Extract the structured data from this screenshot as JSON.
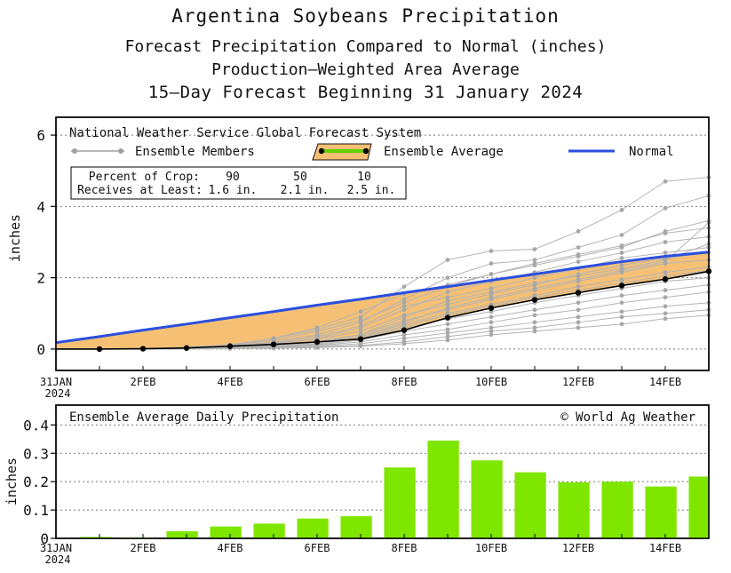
{
  "titles": {
    "line1": "Argentina Soybeans Precipitation",
    "line2": "Forecast Precipitation Compared to Normal (inches)",
    "line3": "Production—Weighted Area Average",
    "line4": "15—Day Forecast Beginning 31 January 2024"
  },
  "chart_data": [
    {
      "type": "line",
      "panel_label": "National Weather Service Global Forecast System",
      "ylabel": "inches",
      "ylim": [
        -0.6,
        6.5
      ],
      "yticks": [
        0,
        2,
        4,
        6
      ],
      "x_days": [
        0,
        1,
        2,
        3,
        4,
        5,
        6,
        7,
        8,
        9,
        10,
        11,
        12,
        13,
        14,
        15
      ],
      "x_tick_labels": [
        {
          "day": 0,
          "label": "31JAN",
          "sub": "2024"
        },
        {
          "day": 2,
          "label": "2FEB"
        },
        {
          "day": 4,
          "label": "4FEB"
        },
        {
          "day": 6,
          "label": "6FEB"
        },
        {
          "day": 8,
          "label": "8FEB"
        },
        {
          "day": 10,
          "label": "10FEB"
        },
        {
          "day": 12,
          "label": "12FEB"
        },
        {
          "day": 14,
          "label": "14FEB"
        }
      ],
      "legend": {
        "members": "Ensemble Members",
        "average": "Ensemble Average",
        "normal": "Normal"
      },
      "crop_box": {
        "row1_label": "Percent of Crop:",
        "row1_values": [
          "90",
          "50",
          "10"
        ],
        "row2_label": "Receives at Least:",
        "row2_values": [
          "1.6 in.",
          "2.1 in.",
          "2.5 in."
        ]
      },
      "series": [
        {
          "name": "Normal",
          "color": "#2a4fe0",
          "values": [
            0.18,
            0.35,
            0.53,
            0.7,
            0.88,
            1.05,
            1.23,
            1.4,
            1.58,
            1.75,
            1.93,
            2.1,
            2.28,
            2.45,
            2.6,
            2.72
          ]
        },
        {
          "name": "Ensemble Average",
          "color": "#000000",
          "values": [
            0.0,
            0.0,
            0.01,
            0.03,
            0.08,
            0.13,
            0.2,
            0.28,
            0.53,
            0.88,
            1.15,
            1.38,
            1.58,
            1.78,
            1.96,
            2.18
          ]
        }
      ],
      "ensemble_members": [
        [
          0,
          0,
          0,
          0.02,
          0.1,
          0.3,
          0.55,
          0.9,
          1.75,
          2.5,
          2.75,
          2.8,
          3.3,
          3.9,
          4.7,
          4.82
        ],
        [
          0,
          0,
          0,
          0.02,
          0.08,
          0.2,
          0.4,
          0.75,
          1.4,
          2.0,
          2.4,
          2.5,
          2.85,
          3.2,
          3.95,
          4.3
        ],
        [
          0,
          0,
          0.01,
          0.05,
          0.12,
          0.3,
          0.6,
          1.05,
          1.55,
          1.8,
          2.1,
          2.35,
          2.6,
          2.85,
          3.3,
          3.6
        ],
        [
          0,
          0,
          0,
          0.03,
          0.1,
          0.25,
          0.5,
          0.8,
          1.3,
          1.75,
          2.1,
          2.4,
          2.65,
          2.9,
          3.25,
          3.4
        ],
        [
          0,
          0,
          0,
          0.02,
          0.06,
          0.15,
          0.3,
          0.6,
          1.1,
          1.6,
          1.9,
          2.15,
          2.45,
          2.7,
          3.0,
          3.15
        ],
        [
          0,
          0,
          0,
          0.02,
          0.08,
          0.18,
          0.35,
          0.65,
          1.2,
          1.45,
          1.7,
          2.0,
          2.25,
          2.55,
          2.7,
          2.85
        ],
        [
          0,
          0,
          0,
          0.03,
          0.07,
          0.15,
          0.28,
          0.5,
          0.95,
          1.25,
          1.55,
          1.8,
          2.1,
          2.35,
          2.55,
          2.7
        ],
        [
          0,
          0,
          0,
          0.02,
          0.06,
          0.12,
          0.22,
          0.4,
          0.8,
          1.1,
          1.4,
          1.65,
          1.9,
          2.15,
          2.4,
          2.5
        ],
        [
          0,
          0,
          0,
          0.01,
          0.05,
          0.1,
          0.2,
          0.35,
          0.7,
          1.0,
          1.25,
          1.5,
          1.75,
          1.95,
          2.15,
          2.3
        ],
        [
          0,
          0,
          0,
          0.02,
          0.04,
          0.08,
          0.15,
          0.3,
          0.6,
          0.85,
          1.05,
          1.3,
          1.5,
          1.7,
          1.9,
          2.0
        ],
        [
          0,
          0,
          0,
          0.01,
          0.03,
          0.06,
          0.12,
          0.25,
          0.5,
          0.7,
          0.9,
          1.1,
          1.3,
          1.5,
          1.65,
          1.8
        ],
        [
          0,
          0,
          0,
          0.01,
          0.03,
          0.05,
          0.1,
          0.2,
          0.4,
          0.55,
          0.75,
          0.95,
          1.1,
          1.3,
          1.45,
          1.6
        ],
        [
          0,
          0,
          0,
          0.01,
          0.02,
          0.04,
          0.08,
          0.15,
          0.3,
          0.45,
          0.6,
          0.75,
          0.9,
          1.05,
          1.2,
          1.3
        ],
        [
          0,
          0,
          0,
          0.01,
          0.02,
          0.03,
          0.06,
          0.1,
          0.2,
          0.35,
          0.5,
          0.6,
          0.75,
          0.9,
          1.0,
          1.1
        ],
        [
          0,
          0,
          0,
          0,
          0.01,
          0.02,
          0.04,
          0.08,
          0.15,
          0.25,
          0.4,
          0.5,
          0.6,
          0.7,
          0.85,
          0.95
        ],
        [
          0,
          0,
          0,
          0.02,
          0.05,
          0.1,
          0.2,
          0.4,
          0.9,
          1.35,
          1.6,
          1.85,
          2.05,
          2.25,
          2.5,
          2.95
        ],
        [
          0,
          0,
          0,
          0.01,
          0.04,
          0.08,
          0.18,
          0.35,
          0.75,
          1.15,
          1.45,
          1.7,
          1.95,
          2.2,
          2.45,
          3.55
        ],
        [
          0,
          0,
          0,
          0.01,
          0.03,
          0.07,
          0.14,
          0.3,
          0.65,
          0.95,
          1.2,
          1.45,
          1.65,
          1.85,
          2.05,
          2.2
        ]
      ]
    },
    {
      "type": "bar",
      "panel_label": "Ensemble Average Daily Precipitation",
      "credit": "© World Ag Weather",
      "ylabel": "inches",
      "ylim": [
        0,
        0.47
      ],
      "yticks": [
        "0",
        "0.1",
        "0.2",
        "0.3",
        "0.4"
      ],
      "color": "#7fe600",
      "days": [
        1,
        2,
        3,
        4,
        5,
        6,
        7,
        8,
        9,
        10,
        11,
        12,
        13,
        14,
        15
      ],
      "values": [
        0.005,
        0.003,
        0.025,
        0.042,
        0.052,
        0.07,
        0.078,
        0.25,
        0.345,
        0.275,
        0.233,
        0.198,
        0.2,
        0.183,
        0.218
      ]
    }
  ]
}
